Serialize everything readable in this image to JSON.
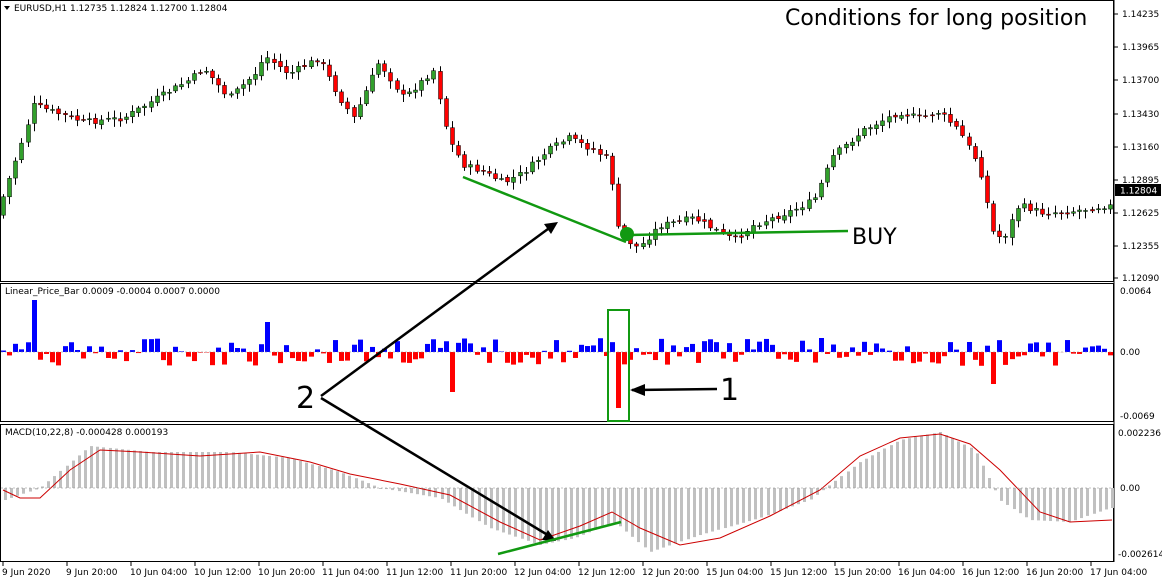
{
  "main_panel": {
    "header": "EURUSD,H1  1.12735 1.12824 1.12700 1.12804",
    "title": "Conditions for long position",
    "price_labels": [
      "1.14235",
      "1.13965",
      "1.13700",
      "1.13430",
      "1.13160",
      "1.12895",
      "1.12625",
      "1.12355",
      "1.12090"
    ],
    "current_price": "1.12804",
    "buy_label": "BUY"
  },
  "indicator_panel": {
    "header": "Linear_Price_Bar 0.0009 -0.0004 0.0007 0.0000",
    "scale_labels": [
      "0.0064",
      "0.00",
      "-0.0069"
    ],
    "annotation_one": "1"
  },
  "macd_panel": {
    "header": "MACD(10,22,8) -0.000428 0.000193",
    "scale_labels": [
      "0.002236",
      "0.00",
      "-0.002614"
    ],
    "annotation_two": "2"
  },
  "time_axis": [
    "9 Jun 2020",
    "9 Jun 20:00",
    "10 Jun 04:00",
    "10 Jun 12:00",
    "10 Jun 20:00",
    "11 Jun 04:00",
    "11 Jun 12:00",
    "11 Jun 20:00",
    "12 Jun 04:00",
    "12 Jun 12:00",
    "12 Jun 20:00",
    "15 Jun 04:00",
    "15 Jun 12:00",
    "15 Jun 20:00",
    "16 Jun 04:00",
    "16 Jun 12:00",
    "16 Jun 20:00",
    "17 Jun 04:00"
  ],
  "colors": {
    "bull": "#32a02c",
    "bear": "#ff0000",
    "histo_up": "#0000ff",
    "histo_down": "#ff0000",
    "macd_hist": "#c0c0c0",
    "signal": "#cc0000",
    "annot": "#119911"
  }
}
